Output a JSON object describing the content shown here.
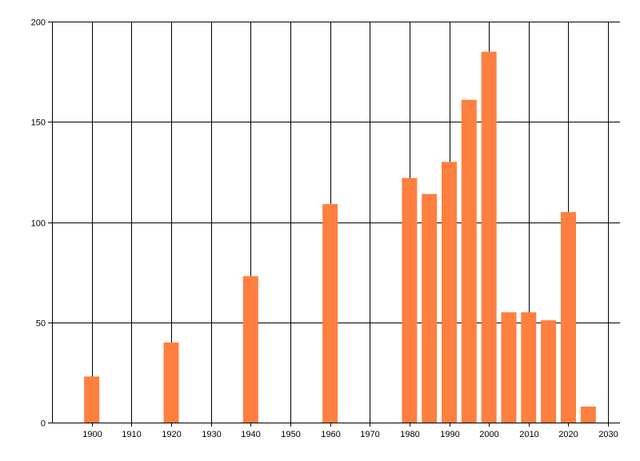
{
  "chart_data": {
    "type": "bar",
    "title": "",
    "xlabel": "",
    "ylabel": "",
    "xlim": [
      1890,
      2033
    ],
    "ylim": [
      0,
      200
    ],
    "x_ticks": [
      1900,
      1910,
      1920,
      1930,
      1940,
      1950,
      1960,
      1970,
      1980,
      1990,
      2000,
      2010,
      2020,
      2030
    ],
    "y_ticks": [
      0,
      50,
      100,
      150,
      200
    ],
    "grid": true,
    "legend": "none",
    "bar_color": "#ff7f3f",
    "series": [
      {
        "x": [
          1900,
          1920,
          1940,
          1960,
          1980,
          1985,
          1990,
          1995,
          2000,
          2005,
          2010,
          2015,
          2020,
          2025
        ],
        "values": [
          23,
          40,
          73,
          109,
          122,
          114,
          130,
          161,
          185,
          55,
          55,
          51,
          105,
          8
        ]
      }
    ]
  }
}
